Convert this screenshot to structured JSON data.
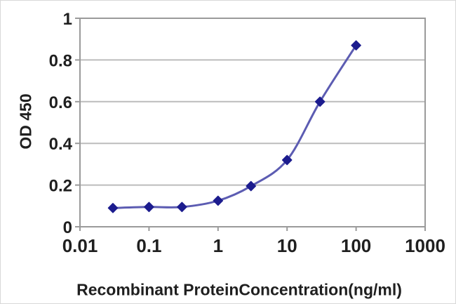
{
  "chart_data": {
    "type": "line",
    "title": "",
    "xlabel": "Recombinant ProteinConcentration(ng/ml)",
    "ylabel": "OD 450",
    "x_scale": "log",
    "xlim": [
      0.01,
      1000
    ],
    "ylim": [
      0,
      1
    ],
    "x_ticks": [
      0.01,
      0.1,
      1,
      10,
      100,
      1000
    ],
    "x_tick_labels": [
      "0.01",
      "0.1",
      "1",
      "10",
      "100",
      "1000"
    ],
    "y_ticks": [
      0,
      0.2,
      0.4,
      0.6,
      0.8,
      1
    ],
    "y_tick_labels": [
      "0",
      "0.2",
      "0.4",
      "0.6",
      "0.8",
      "1"
    ],
    "grid": "horizontal",
    "legend": "none",
    "marker": "diamond",
    "series": [
      {
        "x": [
          0.03,
          0.1,
          0.3,
          1,
          3,
          10,
          30,
          100
        ],
        "y": [
          0.09,
          0.095,
          0.095,
          0.125,
          0.195,
          0.32,
          0.6,
          0.87
        ]
      }
    ],
    "colors": {
      "line": "#5c5cb2",
      "marker": "#1c1c8e",
      "grid": "#bcbcbc",
      "axis": "#9a9a9a",
      "text": "#1f1f1f",
      "background": "#ffffff"
    }
  }
}
